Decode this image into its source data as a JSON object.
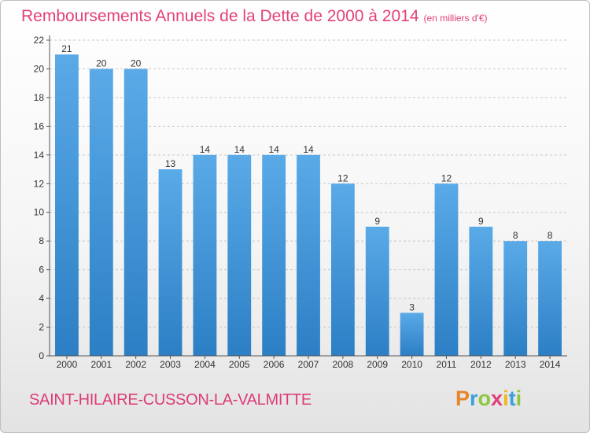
{
  "title": "Remboursements Annuels de la Dette de 2000 à 2014",
  "unit": "(en milliers d'€)",
  "footer_label": "SAINT-HILAIRE-CUSSON-LA-VALMITTE",
  "brand": {
    "text": "Proxiti",
    "letter_colors": [
      "#e8842a",
      "#3aa0dc",
      "#8dc63f",
      "#e23c79",
      "#f2b51b",
      "#3aa0dc",
      "#8dc63f"
    ]
  },
  "colors": {
    "bar": "#5aaae8",
    "bar_dark": "#2c7fc4",
    "grid": "#c8c8c8",
    "axis": "#555555",
    "text": "#333333"
  },
  "chart_data": {
    "type": "bar",
    "categories": [
      "2000",
      "2001",
      "2002",
      "2003",
      "2004",
      "2005",
      "2006",
      "2007",
      "2008",
      "2009",
      "2010",
      "2011",
      "2012",
      "2013",
      "2014"
    ],
    "values": [
      21,
      20,
      20,
      13,
      14,
      14,
      14,
      14,
      12,
      9,
      3,
      12,
      9,
      8,
      8
    ],
    "ylim": [
      0,
      22
    ],
    "yticks": [
      0,
      2,
      4,
      6,
      8,
      10,
      12,
      14,
      16,
      18,
      20,
      22
    ],
    "grid": true,
    "value_labels": true
  }
}
